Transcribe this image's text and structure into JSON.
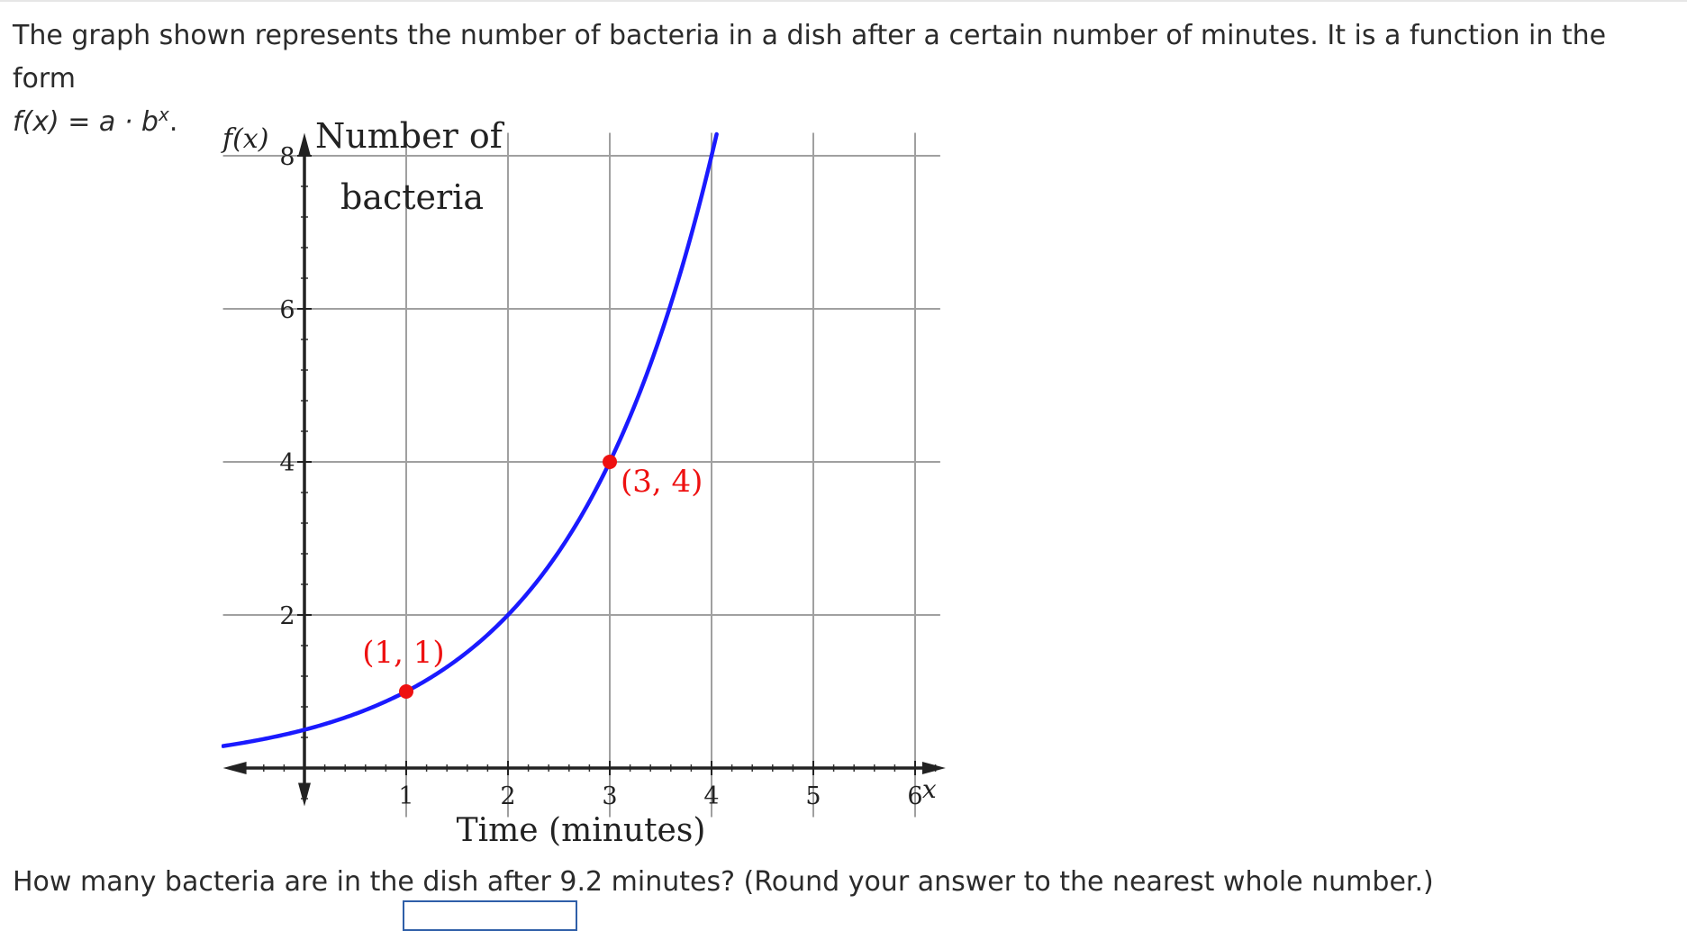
{
  "question": {
    "intro": "The graph shown represents the number of bacteria in a dish after a certain number of minutes. It is a function in the form",
    "formula_lhs": "f(x) = a · b",
    "formula_sup": "x",
    "formula_end": ".",
    "prompt": "How many bacteria are in the dish after 9.2 minutes? (Round your answer to the nearest whole number.)"
  },
  "chart_data": {
    "type": "line",
    "title": "",
    "ylabel": "Number of bacteria",
    "ylabel_lines": [
      "Number of",
      "bacteria"
    ],
    "y_axis_name": "f(x)",
    "xlabel": "Time (minutes)",
    "x_axis_name": "x",
    "xlim": [
      -0.8,
      6.3
    ],
    "ylim": [
      -0.5,
      8.3
    ],
    "x_ticks": [
      1,
      2,
      3,
      4,
      5,
      6
    ],
    "x_tick_labels": [
      "1",
      "2",
      "3",
      "4",
      "5",
      "6"
    ],
    "y_ticks": [
      2,
      4,
      6,
      8
    ],
    "y_tick_labels": [
      "2",
      "4",
      "6",
      "8"
    ],
    "grid": true,
    "curve": {
      "color": "#1a1aff",
      "a": 0.5,
      "b": 2,
      "x_start": -0.8,
      "x_end": 4.05
    },
    "points": [
      {
        "x": 1,
        "y": 1,
        "label": "(1, 1)",
        "color": "#ee1111"
      },
      {
        "x": 3,
        "y": 4,
        "label": "(3, 4)",
        "color": "#ee1111"
      }
    ]
  }
}
